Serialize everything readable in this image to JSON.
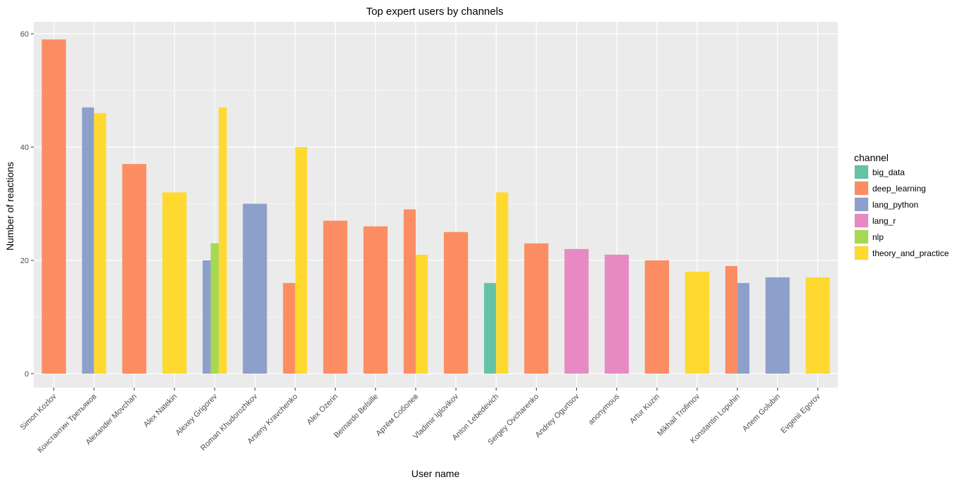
{
  "chart_data": {
    "type": "bar",
    "title": "Top expert users by channels",
    "xlabel": "User name",
    "ylabel": "Number of reactions",
    "ylim": [
      0,
      60
    ],
    "yticks": [
      0,
      20,
      40,
      60
    ],
    "grid": true,
    "legend": {
      "title": "channel",
      "placement": "right"
    },
    "channels": [
      {
        "name": "big_data",
        "color": "#66C2A5"
      },
      {
        "name": "deep_learning",
        "color": "#FC8D62"
      },
      {
        "name": "lang_python",
        "color": "#8DA0CB"
      },
      {
        "name": "lang_r",
        "color": "#E78AC3"
      },
      {
        "name": "nlp",
        "color": "#A6D854"
      },
      {
        "name": "theory_and_practice",
        "color": "#FFD92F"
      }
    ],
    "categories": [
      "Simon Kozlov",
      "Константин Третьяков",
      "Alexander Movchan",
      "Alex Natekin",
      "Alexey Grigorev",
      "Roman Khudorozhkov",
      "Arseny Kravchenko",
      "Alex Ozerin",
      "Bernardo Belsille",
      "Артём Соболев",
      "Vladimir Iglovikov",
      "Anton Lebedevich",
      "Sergey Ovcharenko",
      "Andrey Ogurtsov",
      "anonymous",
      "Artur Kuzin",
      "Mikhail Trofimov",
      "Konstantin Lopuhin",
      "Artem Golubin",
      "Evgenii Egorov"
    ],
    "groups": [
      [
        {
          "channel": "deep_learning",
          "value": 59
        }
      ],
      [
        {
          "channel": "lang_python",
          "value": 47
        },
        {
          "channel": "theory_and_practice",
          "value": 46
        }
      ],
      [
        {
          "channel": "deep_learning",
          "value": 37
        }
      ],
      [
        {
          "channel": "theory_and_practice",
          "value": 32
        }
      ],
      [
        {
          "channel": "lang_python",
          "value": 20
        },
        {
          "channel": "nlp",
          "value": 23
        },
        {
          "channel": "theory_and_practice",
          "value": 47
        }
      ],
      [
        {
          "channel": "lang_python",
          "value": 30
        }
      ],
      [
        {
          "channel": "deep_learning",
          "value": 16
        },
        {
          "channel": "theory_and_practice",
          "value": 40
        }
      ],
      [
        {
          "channel": "deep_learning",
          "value": 27
        }
      ],
      [
        {
          "channel": "deep_learning",
          "value": 26
        }
      ],
      [
        {
          "channel": "deep_learning",
          "value": 29
        },
        {
          "channel": "theory_and_practice",
          "value": 21
        }
      ],
      [
        {
          "channel": "deep_learning",
          "value": 25
        }
      ],
      [
        {
          "channel": "big_data",
          "value": 16
        },
        {
          "channel": "theory_and_practice",
          "value": 32
        }
      ],
      [
        {
          "channel": "deep_learning",
          "value": 23
        }
      ],
      [
        {
          "channel": "lang_r",
          "value": 22
        }
      ],
      [
        {
          "channel": "lang_r",
          "value": 21
        }
      ],
      [
        {
          "channel": "deep_learning",
          "value": 20
        }
      ],
      [
        {
          "channel": "theory_and_practice",
          "value": 18
        }
      ],
      [
        {
          "channel": "deep_learning",
          "value": 19
        },
        {
          "channel": "lang_python",
          "value": 16
        }
      ],
      [
        {
          "channel": "lang_python",
          "value": 17
        }
      ],
      [
        {
          "channel": "theory_and_practice",
          "value": 17
        }
      ]
    ]
  }
}
